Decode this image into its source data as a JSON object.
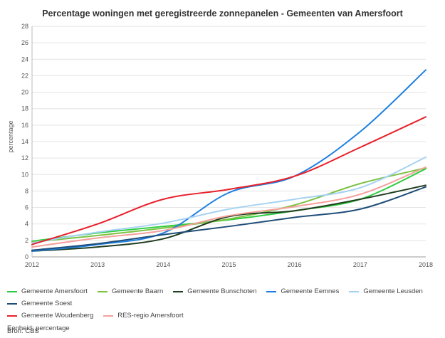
{
  "chart_data": {
    "type": "line",
    "title": "Percentage woningen met geregistreerde zonnepanelen - Gemeenten van Amersfoort",
    "ylabel": "percentage",
    "xlabel": "",
    "ylim": [
      0,
      28
    ],
    "yticks": [
      0,
      2,
      4,
      6,
      8,
      10,
      12,
      14,
      16,
      18,
      20,
      22,
      24,
      26,
      28
    ],
    "x": [
      "2012",
      "2013",
      "2014",
      "2015",
      "2016",
      "2017",
      "2018"
    ],
    "grid": "horizontal",
    "legend_position": "bottom",
    "series": [
      {
        "name": "Gemeente Amersfoort",
        "color": "#2ecc40",
        "values": [
          1.9,
          2.9,
          3.7,
          4.5,
          5.6,
          7.0,
          10.7
        ]
      },
      {
        "name": "Gemeente Baarn",
        "color": "#7dc243",
        "values": [
          1.8,
          2.6,
          3.5,
          4.6,
          6.3,
          8.9,
          10.8
        ]
      },
      {
        "name": "Gemeente Bunschoten",
        "color": "#1f3d1f",
        "values": [
          0.7,
          1.2,
          2.2,
          4.9,
          5.6,
          7.0,
          8.7
        ]
      },
      {
        "name": "Gemeente Eemnes",
        "color": "#1e7fe0",
        "values": [
          0.7,
          1.5,
          2.9,
          7.8,
          9.8,
          15.2,
          22.7
        ]
      },
      {
        "name": "Gemeente Leusden",
        "color": "#a6d2f2",
        "values": [
          1.7,
          3.0,
          4.1,
          5.8,
          7.0,
          8.4,
          12.1
        ]
      },
      {
        "name": "Gemeente Soest",
        "color": "#1f4e79",
        "values": [
          0.8,
          1.6,
          2.7,
          3.7,
          4.8,
          5.8,
          8.5
        ]
      },
      {
        "name": "Gemeente Woudenberg",
        "color": "#e8202a",
        "values": [
          1.5,
          4.0,
          7.0,
          8.2,
          9.8,
          13.3,
          17.0
        ]
      },
      {
        "name": "RES-regio Amersfoort",
        "color": "#f4a09c",
        "values": [
          1.2,
          2.3,
          3.2,
          5.0,
          6.1,
          7.6,
          10.9
        ]
      }
    ]
  },
  "legend_rows": [
    [
      0,
      1,
      2,
      3,
      4,
      5
    ],
    [
      6,
      7
    ]
  ],
  "unit_note": "Eenheid: percentage",
  "source": "Bron: CBS"
}
